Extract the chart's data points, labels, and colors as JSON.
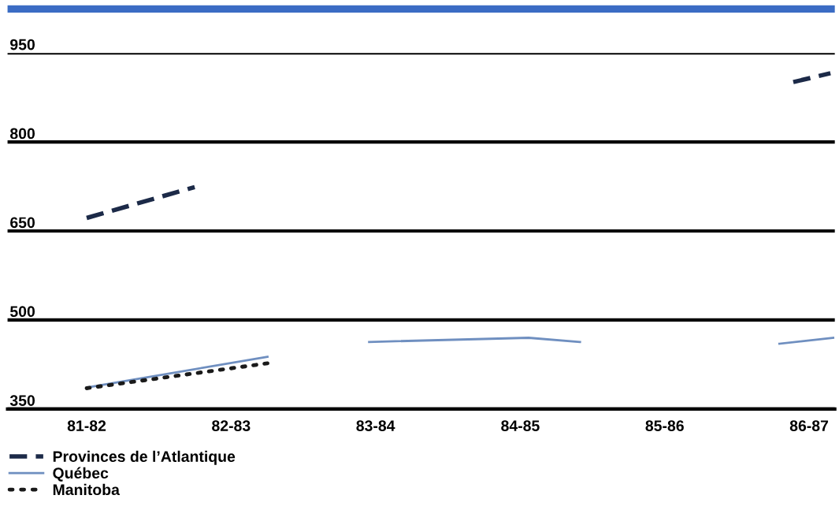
{
  "chart_data": {
    "type": "line",
    "xlim": [
      "1981-03-15",
      "1986-12-05"
    ],
    "xticks": [
      {
        "value": "1981-10-01",
        "label": "81-82"
      },
      {
        "value": "1982-10-01",
        "label": "82-83"
      },
      {
        "value": "1983-10-01",
        "label": "83-84"
      },
      {
        "value": "1984-10-01",
        "label": "84-85"
      },
      {
        "value": "1985-10-01",
        "label": "85-86"
      },
      {
        "value": "1986-10-01",
        "label": "86-87"
      }
    ],
    "ylim": [
      350,
      950
    ],
    "yticks": [
      350,
      500,
      650,
      800,
      950
    ],
    "grid": "y",
    "legend": "bottom left",
    "series": [
      {
        "name": "Provinces de l’Atlantique",
        "color": "#1c2a48",
        "line_style": "dashed",
        "x": [
          "1981-10-01",
          "1982-07-01",
          "1984-07-01",
          "1986-08-22",
          "1986-11-24"
        ],
        "values": [
          672,
          724,
          null,
          901,
          916
        ]
      },
      {
        "name": "Québec",
        "color": "#6f8fc0",
        "line_style": "solid",
        "x": [
          "1981-10-01",
          "1983-01-01",
          "1983-05-01",
          "1983-09-15",
          "1984-10-22",
          "1985-03-01",
          "1985-11-01",
          "1986-07-18",
          "1986-12-01"
        ],
        "values": [
          386,
          438,
          null,
          463,
          470,
          463,
          null,
          460,
          470
        ]
      },
      {
        "name": "Manitoba",
        "color": "#1a1a1a",
        "line_style": "dotted",
        "x": [
          "1981-10-01",
          "1983-01-01"
        ],
        "values": [
          385,
          427
        ]
      }
    ]
  }
}
